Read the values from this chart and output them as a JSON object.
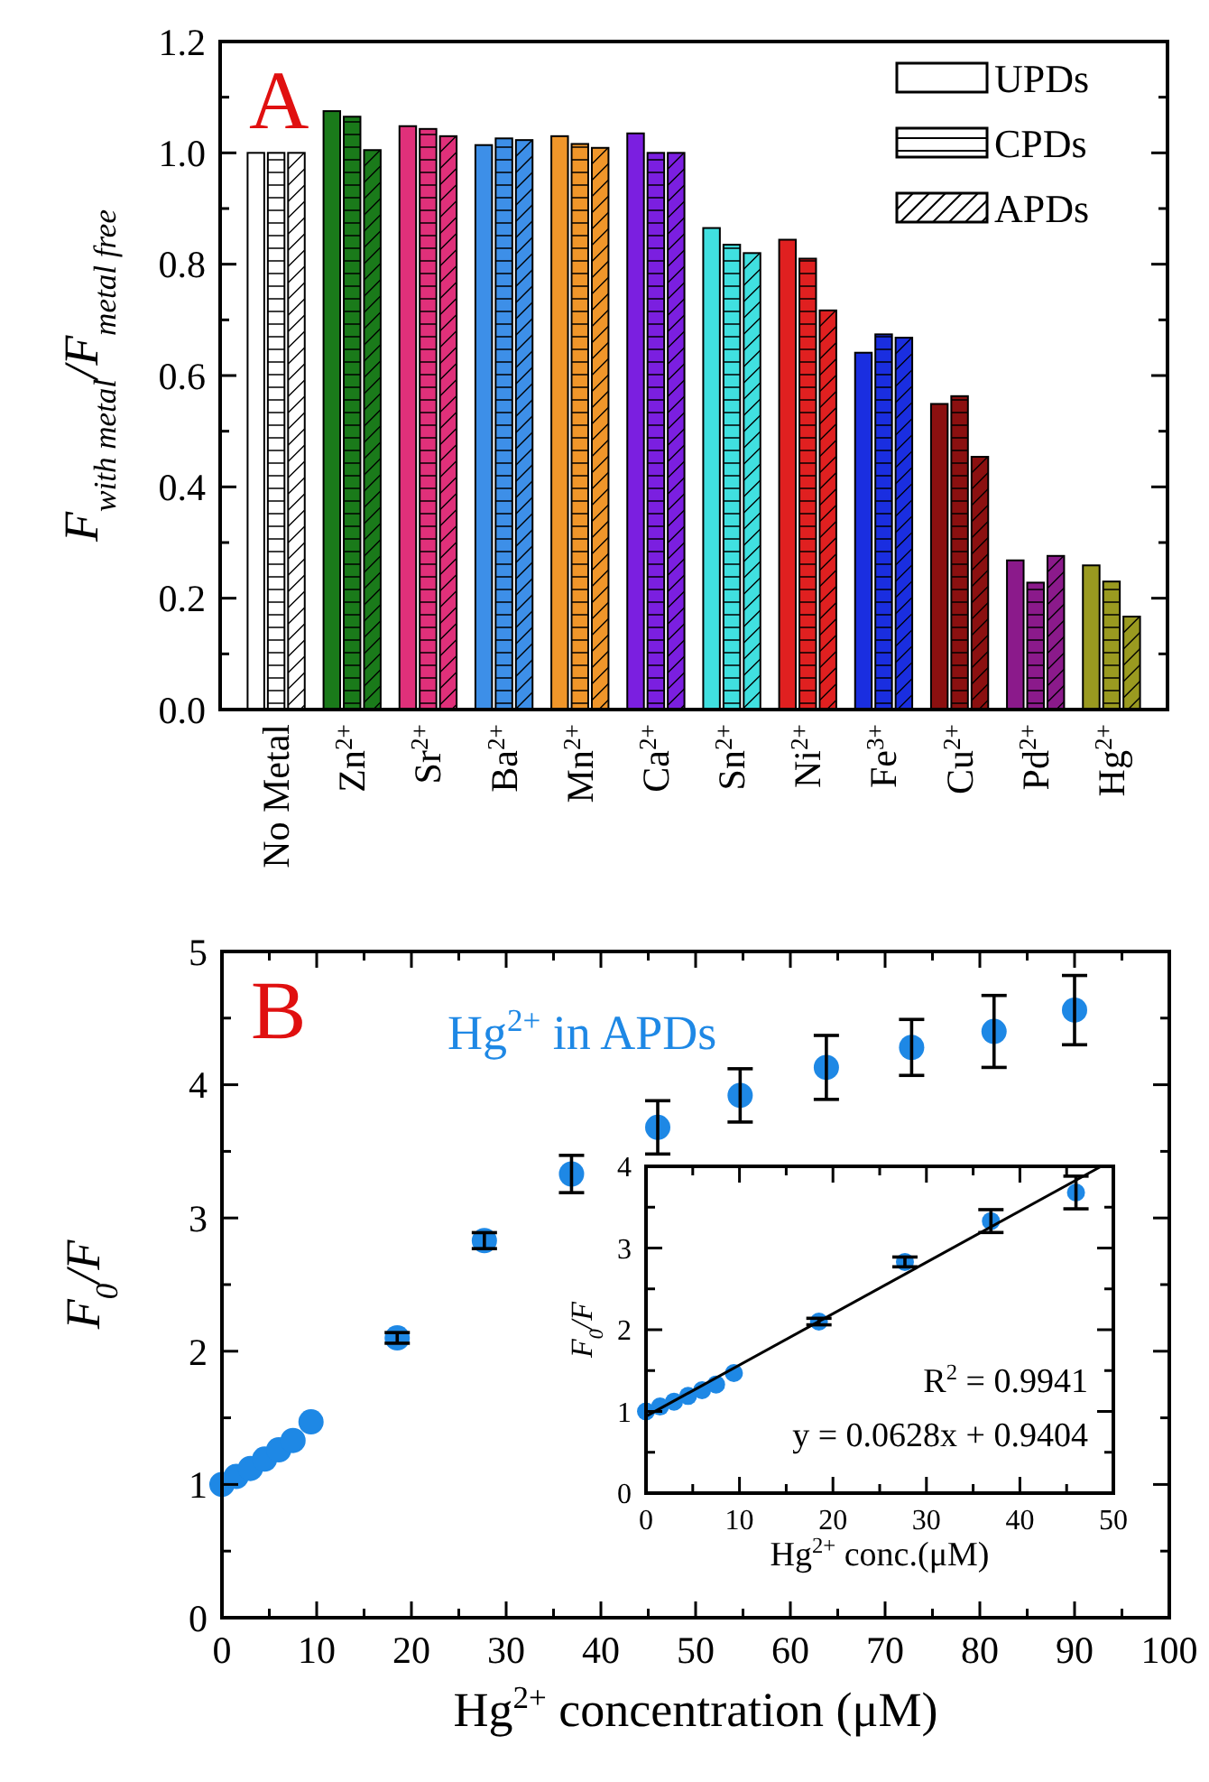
{
  "chart_data": [
    {
      "type": "bar",
      "ylabel": "F$_{with metal}$/F$_{metal free}$",
      "annotations": [
        "A"
      ],
      "legend": "top right",
      "categories": [
        "No Metal",
        "Zn$^{2+}$",
        "Sr$^{2+}$",
        "Ba$^{2+}$",
        "Mn$^{2+}$",
        "Ca$^{2+}$",
        "Sn$^{2+}$",
        "Ni$^{2+}$",
        "Fe$^{3+}$",
        "Cu$^{2+}$",
        "Pd$^{2+}$",
        "Hg$^{2+}$"
      ],
      "series": [
        {
          "name": "UPDs",
          "colors": [
            "#ffffff",
            "#1a7a1a",
            "#e0307a",
            "#3d8fe8",
            "#f0962a",
            "#7b1fe0",
            "#40e0e0",
            "#e02020",
            "#1a2ee0",
            "#8b1010",
            "#8b1a8b",
            "#9a9a20"
          ],
          "values": [
            1.0,
            1.075,
            1.048,
            1.014,
            1.03,
            1.035,
            0.865,
            0.844,
            0.641,
            0.549,
            0.268,
            0.259
          ]
        },
        {
          "name": "CPDs",
          "colors": [
            "#ffffff",
            "#1a7a1a",
            "#e0307a",
            "#3d8fe8",
            "#f0962a",
            "#7b1fe0",
            "#40e0e0",
            "#e02020",
            "#1a2ee0",
            "#8b1010",
            "#8b1a8b",
            "#9a9a20"
          ],
          "values": [
            1.0,
            1.065,
            1.043,
            1.026,
            1.016,
            1.0,
            0.835,
            0.81,
            0.674,
            0.563,
            0.228,
            0.23
          ]
        },
        {
          "name": "APDs",
          "colors": [
            "#ffffff",
            "#1a7a1a",
            "#e0307a",
            "#3d8fe8",
            "#f0962a",
            "#7b1fe0",
            "#40e0e0",
            "#e02020",
            "#1a2ee0",
            "#8b1010",
            "#8b1a8b",
            "#9a9a20"
          ],
          "values": [
            1.0,
            1.005,
            1.03,
            1.023,
            1.009,
            1.0,
            0.82,
            0.717,
            0.668,
            0.454,
            0.276,
            0.167
          ]
        }
      ],
      "ylim": [
        0,
        1.2
      ],
      "yticks": [
        {
          "value": 0,
          "label": "0.0"
        },
        {
          "value": 0.1,
          "label": null
        },
        {
          "value": 0.2,
          "label": "0.2"
        },
        {
          "value": 0.3,
          "label": null
        },
        {
          "value": 0.4,
          "label": "0.4"
        },
        {
          "value": 0.5,
          "label": null
        },
        {
          "value": 0.6,
          "label": "0.6"
        },
        {
          "value": 0.7,
          "label": null
        },
        {
          "value": 0.8,
          "label": "0.8"
        },
        {
          "value": 0.9,
          "label": null
        },
        {
          "value": 1.0,
          "label": "1.0"
        },
        {
          "value": 1.1,
          "label": null
        },
        {
          "value": 1.2,
          "label": "1.2"
        }
      ]
    },
    {
      "type": "scatter",
      "xlabel": "Hg$^{2+}$ concentration (μM)",
      "ylabel": "F$_{0}$/F",
      "annotations": [
        "B"
      ],
      "marker": "circle",
      "series": [
        {
          "name": "Hg$^{2+}$ in APDs",
          "color": "#1e88e5",
          "x": [
            0,
            1.5,
            3,
            4.5,
            6,
            7.5,
            9.4,
            18.5,
            27.7,
            36.9,
            46,
            54.7,
            63.8,
            72.8,
            81.5,
            90
          ],
          "values": [
            1.0,
            1.06,
            1.12,
            1.19,
            1.26,
            1.33,
            1.47,
            2.1,
            2.83,
            3.33,
            3.68,
            3.92,
            4.13,
            4.28,
            4.4,
            4.56
          ],
          "errors": [
            null,
            null,
            null,
            null,
            null,
            null,
            null,
            0.04,
            0.06,
            0.14,
            0.2,
            0.2,
            0.24,
            0.21,
            0.27,
            0.26
          ]
        }
      ],
      "xlim": [
        0,
        100
      ],
      "xticks": [
        0,
        {
          "value": 5,
          "label": null
        },
        10,
        {
          "value": 15,
          "label": null
        },
        20,
        {
          "value": 25,
          "label": null
        },
        30,
        {
          "value": 35,
          "label": null
        },
        40,
        {
          "value": 45,
          "label": null
        },
        50,
        {
          "value": 55,
          "label": null
        },
        60,
        {
          "value": 65,
          "label": null
        },
        70,
        {
          "value": 75,
          "label": null
        },
        80,
        {
          "value": 85,
          "label": null
        },
        90,
        {
          "value": 95,
          "label": null
        },
        100
      ],
      "ylim": [
        0,
        5
      ],
      "yticks": [
        0,
        {
          "value": 0.5,
          "label": null
        },
        1,
        {
          "value": 1.5,
          "label": null
        },
        2,
        {
          "value": 2.5,
          "label": null
        },
        3,
        {
          "value": 3.5,
          "label": null
        },
        4,
        {
          "value": 4.5,
          "label": null
        },
        5
      ]
    },
    {
      "type": "scatter",
      "xlabel": "Hg$^{2+}$ conc.(μM)",
      "ylabel": "F$_{0}$/F",
      "annotations": [
        "R$^{2}$ = 0.9941",
        "y = 0.0628x + 0.9404"
      ],
      "marker": "circle",
      "series": [
        {
          "color": "#1e88e5",
          "x": [
            0,
            1.5,
            3,
            4.5,
            6,
            7.5,
            9.4,
            18.5,
            27.7,
            36.9,
            46
          ],
          "values": [
            1.0,
            1.06,
            1.12,
            1.19,
            1.26,
            1.33,
            1.47,
            2.1,
            2.83,
            3.33,
            3.68
          ],
          "errors": [
            null,
            null,
            null,
            null,
            null,
            null,
            null,
            0.04,
            0.06,
            0.14,
            0.2
          ]
        },
        {
          "type": "line",
          "marker": "none",
          "color": "#000000",
          "x": [
            0,
            48.7
          ],
          "values": [
            0.94,
            4.0
          ]
        }
      ],
      "xlim": [
        0,
        50
      ],
      "xticks": [
        0,
        {
          "value": 5,
          "label": null
        },
        10,
        {
          "value": 15,
          "label": null
        },
        20,
        {
          "value": 25,
          "label": null
        },
        30,
        {
          "value": 35,
          "label": null
        },
        40,
        {
          "value": 45,
          "label": null
        },
        50
      ],
      "ylim": [
        0,
        4
      ],
      "yticks": [
        0,
        {
          "value": 0.5,
          "label": null
        },
        1,
        {
          "value": 1.5,
          "label": null
        },
        2,
        {
          "value": 2.5,
          "label": null
        },
        3,
        {
          "value": 3.5,
          "label": null
        },
        4
      ]
    }
  ]
}
